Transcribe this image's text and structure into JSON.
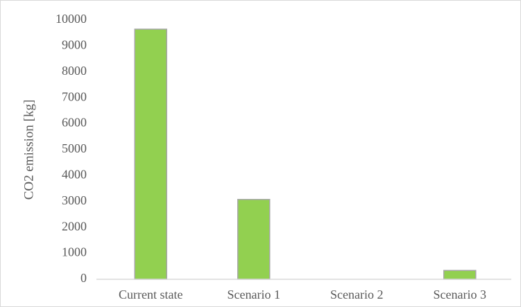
{
  "chart_data": {
    "type": "bar",
    "categories": [
      "Current state",
      "Scenario 1",
      "Scenario 2",
      "Scenario 3"
    ],
    "values": [
      9650,
      3080,
      0,
      340
    ],
    "ylabel": "CO2 emission [kg]",
    "xlabel": "",
    "ylim": [
      0,
      10000
    ],
    "yticks": [
      0,
      1000,
      2000,
      3000,
      4000,
      5000,
      6000,
      7000,
      8000,
      9000,
      10000
    ],
    "grid": false,
    "legend": "none",
    "colors": {
      "bar_fill": "#92d050",
      "bar_stroke": "#a6a6a6",
      "axis": "#d9d9d9"
    }
  }
}
